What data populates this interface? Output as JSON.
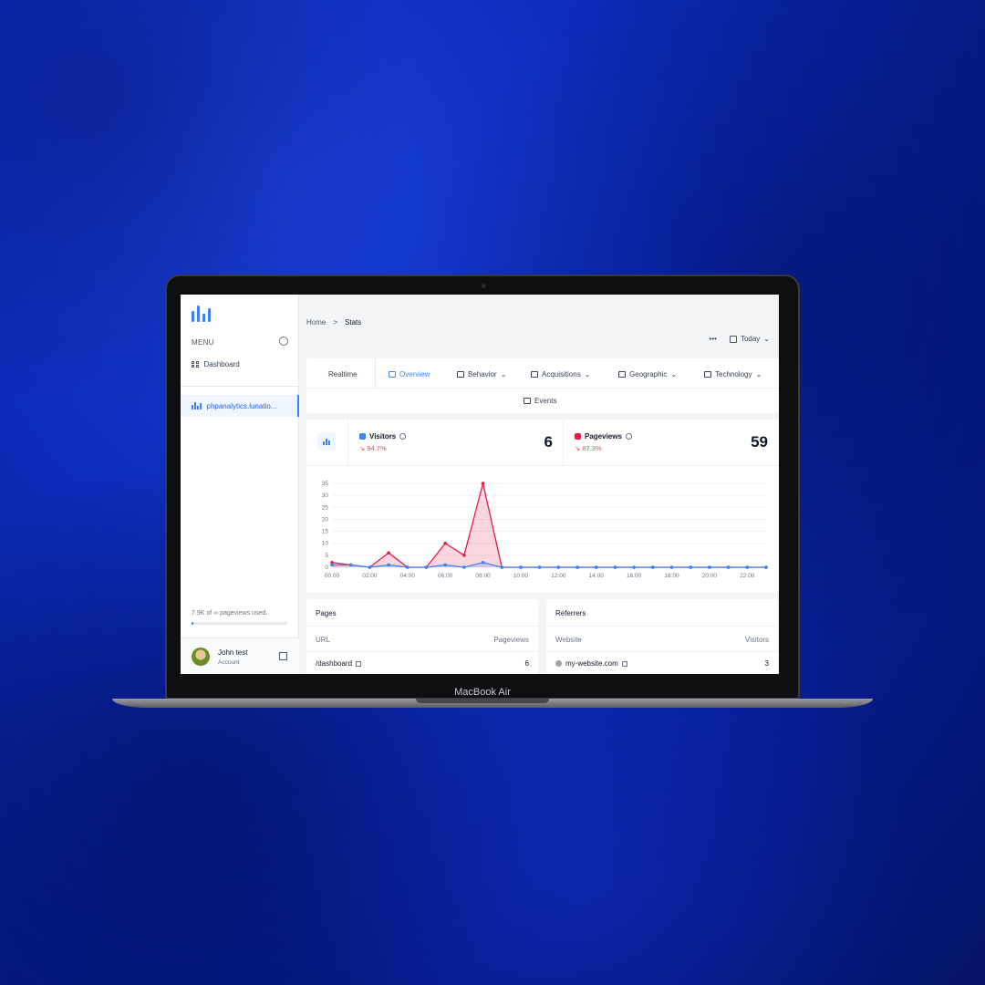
{
  "device": {
    "label": "MacBook Air"
  },
  "sidebar": {
    "menu_title": "MENU",
    "nav": [
      {
        "label": "Dashboard"
      }
    ],
    "site": {
      "label": "phpanalytics.lunatio..."
    },
    "usage": "7.9K of ∞ pageviews used.",
    "user": {
      "name": "John test",
      "sub": "Account"
    }
  },
  "breadcrumb": {
    "home": "Home",
    "separator": ">",
    "current": "Stats"
  },
  "toolbar": {
    "more": "•••",
    "range": "Today",
    "chevron": "⌄"
  },
  "tabs": [
    {
      "label": "Realtime"
    },
    {
      "label": "Overview",
      "active": true
    },
    {
      "label": "Behavior"
    },
    {
      "label": "Acquisitions"
    },
    {
      "label": "Geographic"
    },
    {
      "label": "Technology"
    },
    {
      "label": "Events"
    }
  ],
  "stats": {
    "visitors": {
      "label": "Visitors",
      "delta": "94.7%",
      "value": "6",
      "color": "#3b82f6"
    },
    "pageviews": {
      "label": "Pageviews",
      "delta": "87.3%",
      "value": "59",
      "color": "#e11d48"
    }
  },
  "chart_data": {
    "type": "line",
    "x": [
      "00:00",
      "01:00",
      "02:00",
      "03:00",
      "04:00",
      "05:00",
      "06:00",
      "07:00",
      "08:00",
      "09:00",
      "10:00",
      "11:00",
      "12:00",
      "13:00",
      "14:00",
      "15:00",
      "16:00",
      "17:00",
      "18:00",
      "19:00",
      "20:00",
      "21:00",
      "22:00",
      "23:00"
    ],
    "xticks": [
      "00:00",
      "02:00",
      "04:00",
      "06:00",
      "08:00",
      "10:00",
      "12:00",
      "14:00",
      "16:00",
      "18:00",
      "20:00",
      "22:00"
    ],
    "yticks": [
      "0",
      "5",
      "10",
      "15",
      "20",
      "25",
      "30",
      "35"
    ],
    "ylim": [
      0,
      35
    ],
    "series": [
      {
        "name": "Pageviews",
        "color": "#e11d48",
        "values": [
          2,
          1,
          0,
          6,
          0,
          0,
          10,
          5,
          35,
          0,
          0,
          0,
          0,
          0,
          0,
          0,
          0,
          0,
          0,
          0,
          0,
          0,
          0,
          0
        ]
      },
      {
        "name": "Visitors",
        "color": "#3b82f6",
        "values": [
          1,
          1,
          0,
          1,
          0,
          0,
          1,
          0,
          2,
          0,
          0,
          0,
          0,
          0,
          0,
          0,
          0,
          0,
          0,
          0,
          0,
          0,
          0,
          0
        ]
      }
    ]
  },
  "pages": {
    "title": "Pages",
    "col_left": "URL",
    "col_right": "Pageviews",
    "rows": [
      {
        "label": "/dashboard",
        "value": "6"
      }
    ]
  },
  "referrers": {
    "title": "Referrers",
    "col_left": "Website",
    "col_right": "Visitors",
    "rows": [
      {
        "label": "my-website.com",
        "value": "3"
      }
    ]
  }
}
